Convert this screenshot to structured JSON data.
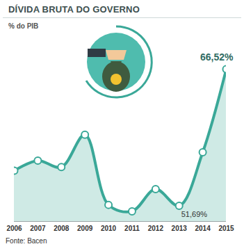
{
  "chart_data": {
    "type": "line",
    "title": "DÍVIDA BRUTA DO GOVERNO",
    "subtitle": "% do PIB",
    "caption": "Fonte: Bacen",
    "x": [
      2006,
      2007,
      2008,
      2009,
      2010,
      2011,
      2012,
      2013,
      2014,
      2015
    ],
    "values": [
      55.5,
      56.6,
      55.9,
      59.4,
      51.8,
      51.1,
      53.5,
      51.69,
      57.5,
      66.52
    ],
    "value_labels": [
      null,
      null,
      null,
      null,
      null,
      null,
      null,
      "51,69%",
      null,
      "66,52%"
    ],
    "color": "#3aa898",
    "marker": "circle",
    "xlim": [
      2006,
      2015
    ],
    "xticks": [
      2006,
      2007,
      2008,
      2009,
      2010,
      2011,
      2012,
      2013,
      2014,
      2015
    ],
    "ylim": [
      50,
      69
    ],
    "yticks": [],
    "tick_labels": "x",
    "grid": false
  }
}
